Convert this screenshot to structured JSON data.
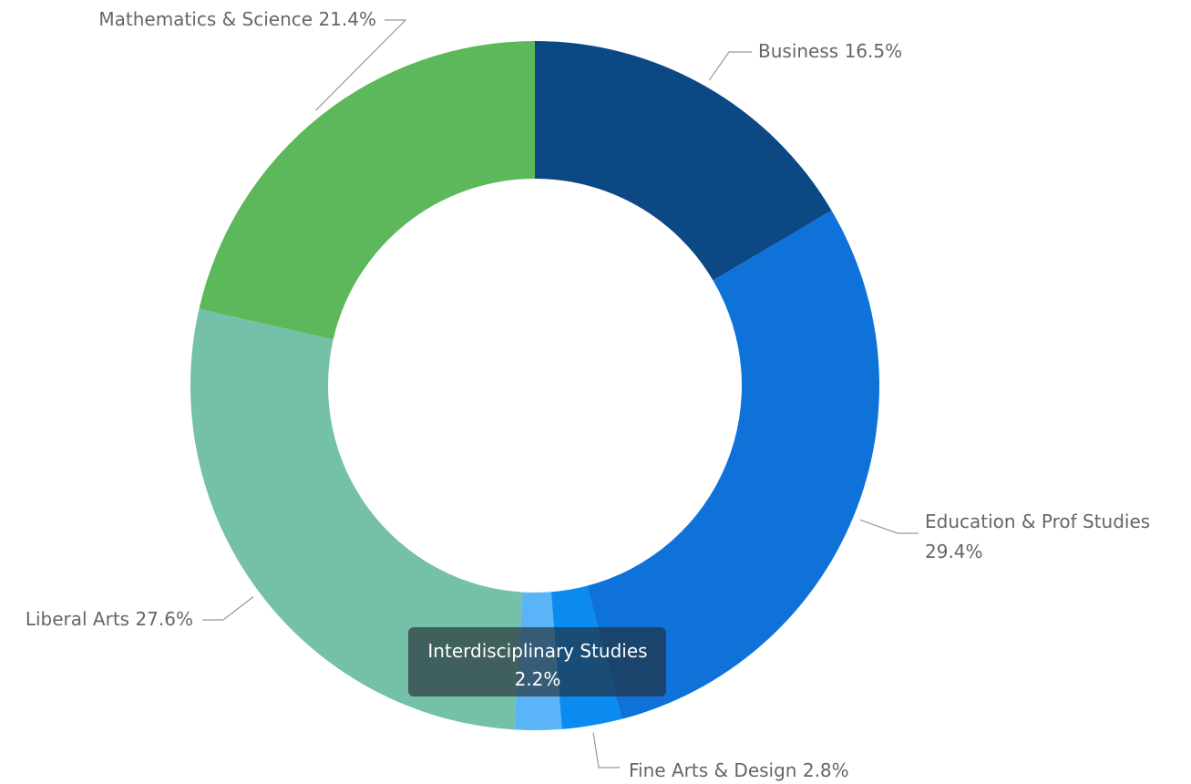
{
  "chart_data": {
    "type": "donut",
    "categories": [
      "Business",
      "Education & Prof Studies",
      "Fine Arts & Design",
      "Interdisciplinary Studies",
      "Liberal Arts",
      "Mathematics & Science"
    ],
    "values": [
      16.5,
      29.4,
      2.8,
      2.2,
      27.6,
      21.4
    ],
    "value_labels": [
      "16.5%",
      "29.4%",
      "2.8%",
      "2.2%",
      "27.6%",
      "21.4%"
    ],
    "colors": [
      "#0b4884",
      "#0e72d8",
      "#0b8af0",
      "#5ab4f7",
      "#74c0a9",
      "#5cb85a"
    ]
  }
}
